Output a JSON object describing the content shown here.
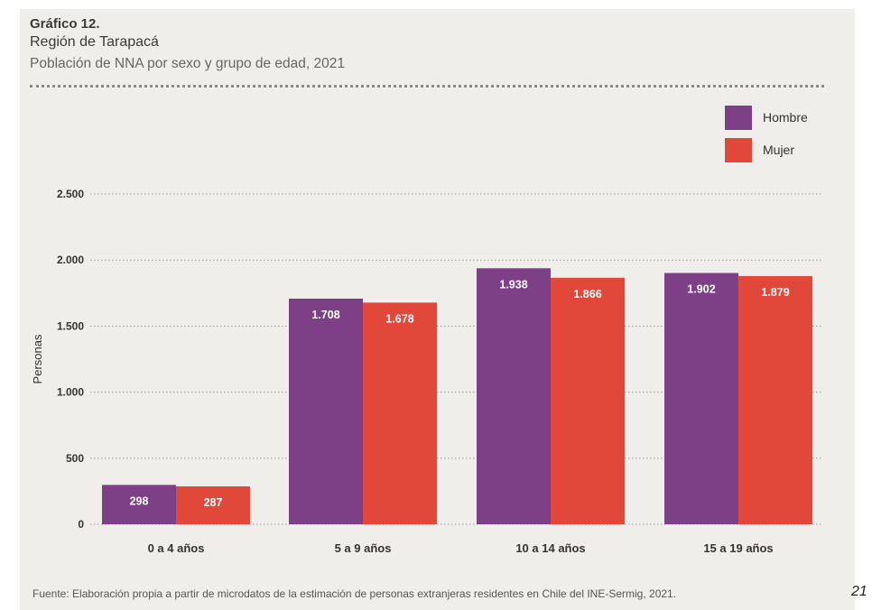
{
  "page_number": "21",
  "footer": "Fuente: Elaboración propia a partir de microdatos de la estimación de personas extranjeras residentes en Chile del INE-Sermig, 2021.",
  "colors": {
    "panel": "#efeeeb",
    "hombre": "#7d3f86",
    "mujer": "#e2483a"
  },
  "chart_data": {
    "type": "bar",
    "title": "Gráfico 12.",
    "subtitle": "Región de Tarapacá",
    "caption": "Población de NNA por sexo y grupo de edad, 2021",
    "xlabel": "",
    "ylabel": "Personas",
    "ylim": [
      0,
      2500
    ],
    "yticks": [
      0,
      500,
      1000,
      1500,
      2000,
      2500
    ],
    "ytick_labels": [
      "0",
      "500",
      "1.000",
      "1.500",
      "2.000",
      "2.500"
    ],
    "categories": [
      "0 a 4 años",
      "5 a 9 años",
      "10 a 14 años",
      "15 a 19 años"
    ],
    "series": [
      {
        "name": "Hombre",
        "color": "#7d3f86",
        "values": [
          298,
          1708,
          1938,
          1902
        ],
        "labels": [
          "298",
          "1.708",
          "1.938",
          "1.902"
        ]
      },
      {
        "name": "Mujer",
        "color": "#e2483a",
        "values": [
          287,
          1678,
          1866,
          1879
        ],
        "labels": [
          "287",
          "1.678",
          "1.866",
          "1.879"
        ]
      }
    ],
    "grid": true,
    "legend": "top-right"
  }
}
